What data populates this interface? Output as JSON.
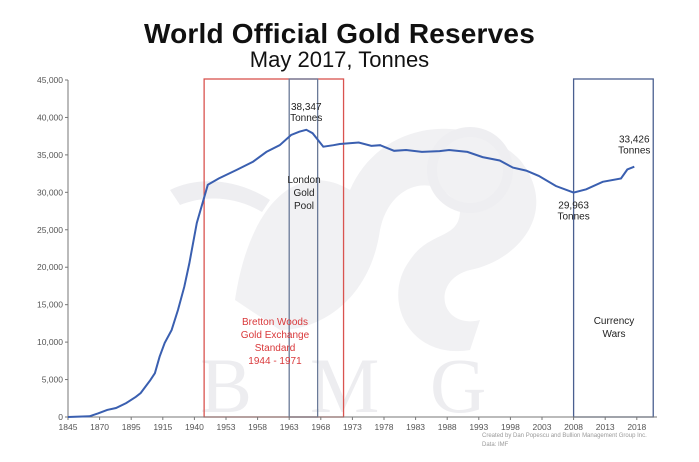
{
  "chart_data": {
    "type": "line",
    "title": "World Official Gold Reserves",
    "subtitle": "May 2017, Tonnes",
    "xlabel": "",
    "ylabel": "",
    "ylim": [
      0,
      45000
    ],
    "yticks": [
      0,
      5000,
      10000,
      15000,
      20000,
      25000,
      30000,
      35000,
      40000,
      45000
    ],
    "ytick_labels": [
      "0",
      "5,000",
      "10,000",
      "15,000",
      "20,000",
      "25,000",
      "30,000",
      "35,000",
      "40,000",
      "45,000"
    ],
    "xticks": [
      1845,
      1870,
      1895,
      1915,
      1940,
      1953,
      1958,
      1963,
      1968,
      1973,
      1978,
      1983,
      1988,
      1993,
      1998,
      2003,
      2008,
      2013,
      2018
    ],
    "x_axis_note": "tick labels equally spaced despite uneven year intervals",
    "grid": false,
    "line_color": "#3a5fb0",
    "series": [
      {
        "x": [
          1845,
          1862,
          1869,
          1876,
          1883,
          1891,
          1898,
          1901,
          1907,
          1910,
          1913,
          1916.5,
          1922,
          1927,
          1932,
          1936,
          1941,
          1945.5,
          1950,
          1954.7,
          1957.3,
          1959.4,
          1961.5,
          1963.3,
          1964.6,
          1965.7,
          1966.7,
          1968.4,
          1970,
          1971,
          1974,
          1976,
          1977.4,
          1979.6,
          1981.5,
          1984,
          1986.8,
          1988.3,
          1991.2,
          1993.6,
          1996.3,
          1998.4,
          2000.5,
          2002.5,
          2005.2,
          2008,
          2010,
          2012.6,
          2015.5,
          2016.5,
          2017.6
        ],
        "values": [
          0,
          100,
          500,
          950,
          1200,
          1850,
          2700,
          3200,
          4900,
          5850,
          8050,
          9900,
          11600,
          14300,
          17400,
          20500,
          25900,
          31000,
          31850,
          33000,
          34100,
          35400,
          36300,
          37650,
          38100,
          38347,
          37900,
          36100,
          36300,
          36450,
          36650,
          36200,
          36300,
          35550,
          35650,
          35400,
          35500,
          35650,
          35400,
          34700,
          34250,
          33300,
          32900,
          32200,
          30850,
          29963,
          30400,
          31400,
          31850,
          33050,
          33426
        ]
      }
    ],
    "regions": [
      {
        "label_lines": [
          "Bretton Woods",
          "Gold Exchange",
          "Standard",
          "1944 - 1971"
        ],
        "x_start": 1944,
        "x_end": 1971.6,
        "color": "#d9534f"
      },
      {
        "label_lines": [
          "London",
          "Gold",
          "Pool"
        ],
        "x_start": 1963,
        "x_end": 1967.5,
        "color": "#6a7a98"
      },
      {
        "label_lines": [
          "Currency",
          "Wars"
        ],
        "x_start": 2008,
        "x_end": 2020.6,
        "color": "#4a5f90"
      }
    ],
    "annotations": [
      {
        "lines": [
          "38,347",
          "Tonnes"
        ],
        "x": 1965.7,
        "y": 38347
      },
      {
        "lines": [
          "29,963",
          "Tonnes"
        ],
        "x": 2008,
        "y": 29963
      },
      {
        "lines": [
          "33,426",
          "Tonnes"
        ],
        "x": 2017.6,
        "y": 33426
      }
    ]
  },
  "watermark": "BMG",
  "credit": {
    "line1": "Created by Dan Popescu and Bullion Management Group Inc.",
    "line2": "Data: IMF"
  }
}
